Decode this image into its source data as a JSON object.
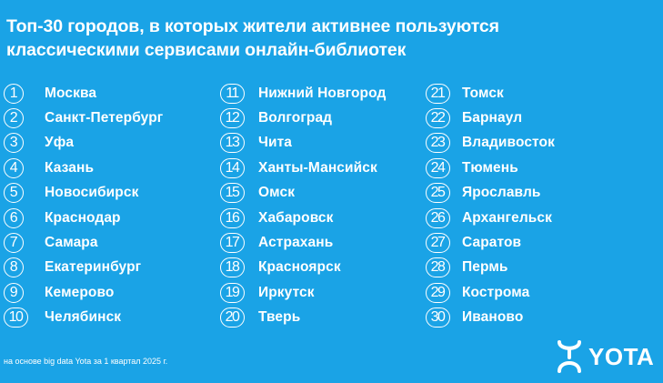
{
  "title": {
    "line1": "Топ-30 городов, в которых жители активнее пользуются",
    "line2": "классическими сервисами онлайн-библиотек"
  },
  "columns": [
    [
      {
        "num": "1",
        "city": "Москва"
      },
      {
        "num": "2",
        "city": "Санкт-Петербург"
      },
      {
        "num": "3",
        "city": "Уфа"
      },
      {
        "num": "4",
        "city": "Казань"
      },
      {
        "num": "5",
        "city": "Новосибирск"
      },
      {
        "num": "6",
        "city": "Краснодар"
      },
      {
        "num": "7",
        "city": "Самара"
      },
      {
        "num": "8",
        "city": "Екатеринбург"
      },
      {
        "num": "9",
        "city": "Кемерово"
      },
      {
        "num": "10",
        "city": "Челябинск"
      }
    ],
    [
      {
        "num": "11",
        "city": "Нижний Новгород"
      },
      {
        "num": "12",
        "city": "Волгоград"
      },
      {
        "num": "13",
        "city": "Чита"
      },
      {
        "num": "14",
        "city": "Ханты-Мансийск"
      },
      {
        "num": "15",
        "city": "Омск"
      },
      {
        "num": "16",
        "city": "Хабаровск"
      },
      {
        "num": "17",
        "city": "Астрахань"
      },
      {
        "num": "18",
        "city": "Красноярск"
      },
      {
        "num": "19",
        "city": "Иркутск"
      },
      {
        "num": "20",
        "city": "Тверь"
      }
    ],
    [
      {
        "num": "21",
        "city": "Томск"
      },
      {
        "num": "22",
        "city": "Барнаул"
      },
      {
        "num": "23",
        "city": "Владивосток"
      },
      {
        "num": "24",
        "city": "Тюмень"
      },
      {
        "num": "25",
        "city": "Ярославль"
      },
      {
        "num": "26",
        "city": "Архангельск"
      },
      {
        "num": "27",
        "city": "Саратов"
      },
      {
        "num": "28",
        "city": "Пермь"
      },
      {
        "num": "29",
        "city": "Кострома"
      },
      {
        "num": "30",
        "city": "Иваново"
      }
    ]
  ],
  "footnote": "на основе big data Yota за 1 квартал 2025 г.",
  "logo": {
    "text": "YOTA",
    "icon": "yota-logo-icon"
  },
  "colors": {
    "background": "#1aa3e6",
    "foreground": "#ffffff"
  }
}
